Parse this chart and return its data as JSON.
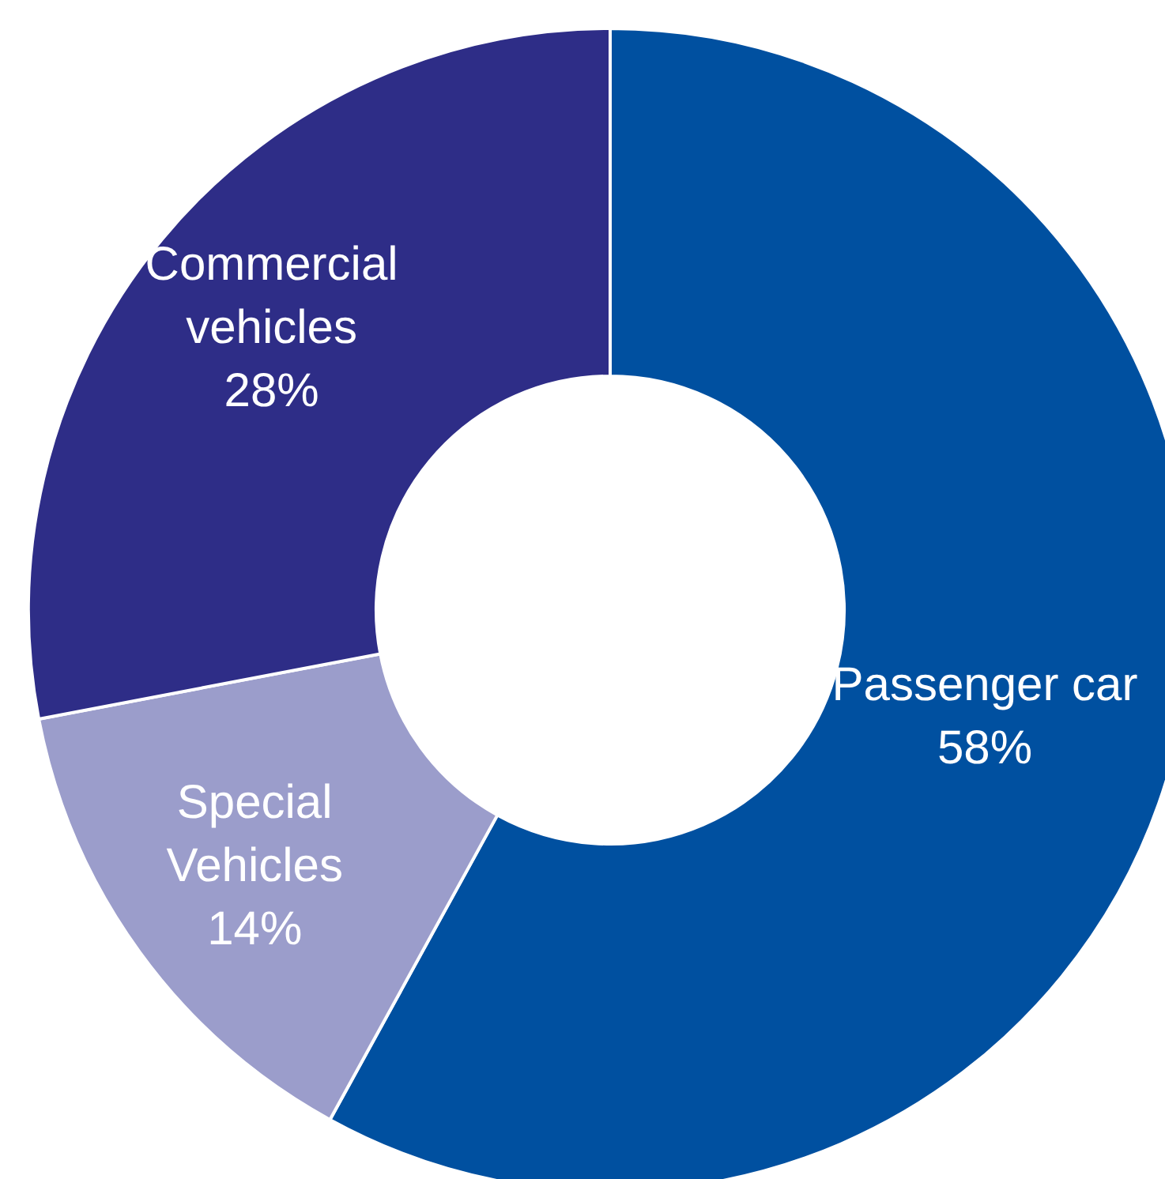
{
  "chart_data": {
    "type": "donut",
    "categories": [
      "Passenger car",
      "Special Vehicles",
      "Commercial vehicles"
    ],
    "values": [
      58,
      14,
      28
    ],
    "colors": [
      "#0050a0",
      "#9b9dcb",
      "#2e2d87"
    ],
    "value_labels": [
      "58%",
      "14%",
      "28%"
    ]
  }
}
